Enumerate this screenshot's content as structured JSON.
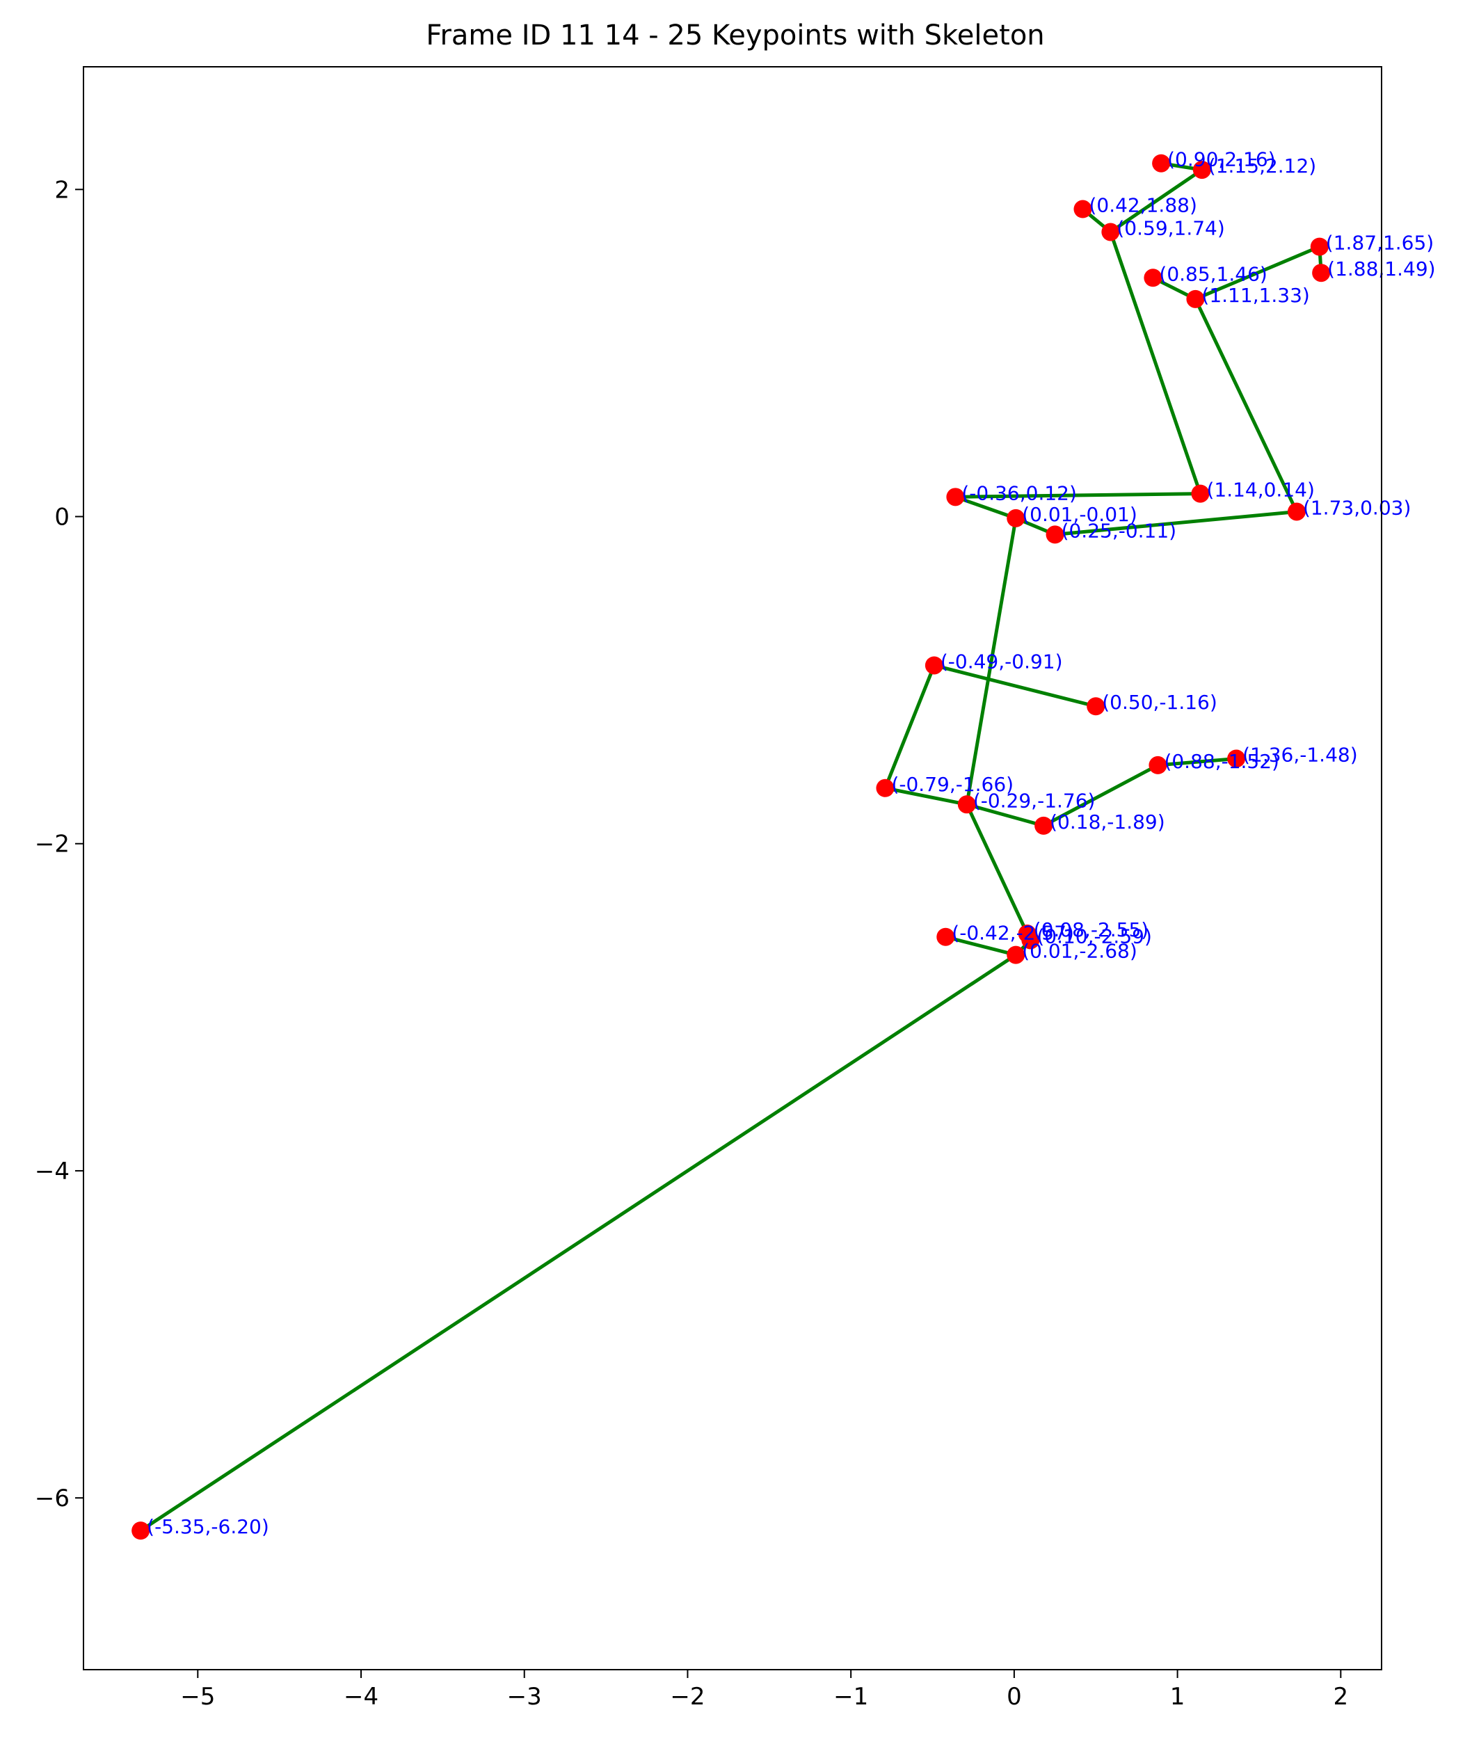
{
  "chart_data": {
    "type": "scatter",
    "title": "Frame ID 11 14 - 25 Keypoints with Skeleton",
    "xlabel": "",
    "ylabel": "",
    "xlim": [
      -5.7,
      2.25
    ],
    "ylim": [
      2.75,
      -7.05
    ],
    "y_inverted": true,
    "grid": false,
    "xticks": [
      -5,
      -4,
      -3,
      -2,
      -1,
      0,
      1,
      2
    ],
    "yticks": [
      -6,
      -4,
      -2,
      0,
      2
    ],
    "x_tick_labels": [
      "−5",
      "−4",
      "−3",
      "−2",
      "−1",
      "0",
      "1",
      "2"
    ],
    "y_tick_labels": [
      "−6",
      "−4",
      "−2",
      "0",
      "2"
    ],
    "colors": {
      "point": "#ff0000",
      "line": "#008000",
      "label": "#0000ff"
    },
    "points": [
      {
        "x": -5.35,
        "y": -6.2,
        "label": "(-5.35,-6.20)"
      },
      {
        "x": 0.01,
        "y": -2.68,
        "label": "(0.01,-2.68)"
      },
      {
        "x": -0.42,
        "y": -2.57,
        "label": "(-0.42,-2.57)"
      },
      {
        "x": 0.1,
        "y": -2.59,
        "label": "(0.10,-2.59)"
      },
      {
        "x": 0.08,
        "y": -2.55,
        "label": "(0.08,-2.55)"
      },
      {
        "x": 0.18,
        "y": -1.89,
        "label": "(0.18,-1.89)"
      },
      {
        "x": -0.29,
        "y": -1.76,
        "label": "(-0.29,-1.76)"
      },
      {
        "x": -0.79,
        "y": -1.66,
        "label": "(-0.79,-1.66)"
      },
      {
        "x": 0.88,
        "y": -1.52,
        "label": "(0.88,-1.52)"
      },
      {
        "x": 1.36,
        "y": -1.48,
        "label": "(1.36,-1.48)"
      },
      {
        "x": 0.5,
        "y": -1.16,
        "label": "(0.50,-1.16)"
      },
      {
        "x": -0.49,
        "y": -0.91,
        "label": "(-0.49,-0.91)"
      },
      {
        "x": 0.25,
        "y": -0.11,
        "label": "(0.25,-0.11)"
      },
      {
        "x": 0.01,
        "y": -0.01,
        "label": "(0.01,-0.01)"
      },
      {
        "x": 1.73,
        "y": 0.03,
        "label": "(1.73,0.03)"
      },
      {
        "x": -0.36,
        "y": 0.12,
        "label": "(-0.36,0.12)"
      },
      {
        "x": 1.14,
        "y": 0.14,
        "label": "(1.14,0.14)"
      },
      {
        "x": 1.11,
        "y": 1.33,
        "label": "(1.11,1.33)"
      },
      {
        "x": 0.85,
        "y": 1.46,
        "label": "(0.85,1.46)"
      },
      {
        "x": 1.88,
        "y": 1.49,
        "label": "(1.88,1.49)"
      },
      {
        "x": 1.87,
        "y": 1.65,
        "label": "(1.87,1.65)"
      },
      {
        "x": 0.59,
        "y": 1.74,
        "label": "(0.59,1.74)"
      },
      {
        "x": 0.42,
        "y": 1.88,
        "label": "(0.42,1.88)"
      },
      {
        "x": 1.15,
        "y": 2.12,
        "label": "(1.15,2.12)"
      },
      {
        "x": 0.9,
        "y": 2.16,
        "label": "(0.90,2.16)"
      }
    ],
    "edges": [
      [
        0,
        1
      ],
      [
        1,
        2
      ],
      [
        1,
        3
      ],
      [
        3,
        4
      ],
      [
        4,
        6
      ],
      [
        6,
        5
      ],
      [
        5,
        8
      ],
      [
        8,
        9
      ],
      [
        6,
        7
      ],
      [
        7,
        11
      ],
      [
        11,
        10
      ],
      [
        6,
        13
      ],
      [
        13,
        12
      ],
      [
        12,
        14
      ],
      [
        13,
        15
      ],
      [
        15,
        16
      ],
      [
        16,
        21
      ],
      [
        21,
        22
      ],
      [
        21,
        23
      ],
      [
        23,
        24
      ],
      [
        14,
        17
      ],
      [
        17,
        18
      ],
      [
        17,
        20
      ],
      [
        20,
        19
      ]
    ]
  }
}
